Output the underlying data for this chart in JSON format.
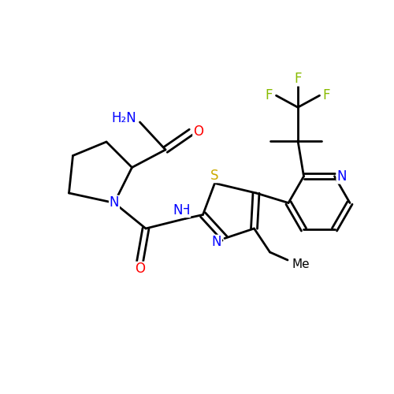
{
  "background_color": "#ffffff",
  "atom_colors": {
    "C": "#000000",
    "N": "#0000ff",
    "O": "#ff0000",
    "S": "#ccaa00",
    "F": "#88bb00",
    "H": "#000000"
  },
  "bond_color": "#000000",
  "bond_width": 2.0,
  "font_size": 12
}
